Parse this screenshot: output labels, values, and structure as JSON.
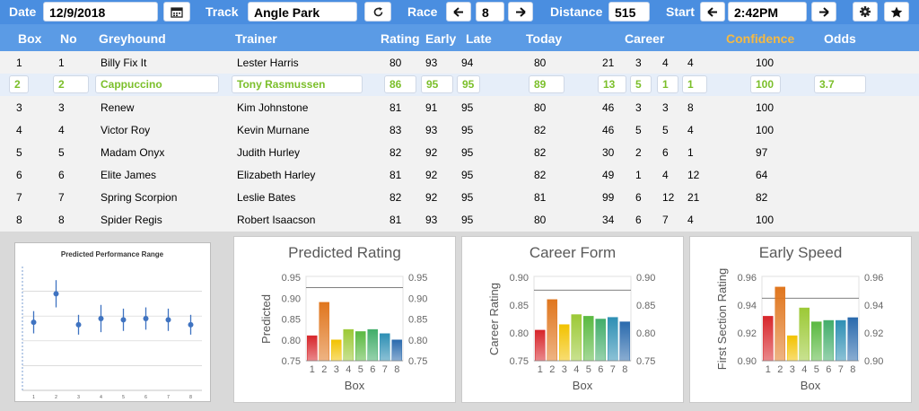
{
  "toolbar": {
    "date_label": "Date",
    "date_value": "12/9/2018",
    "calendar_icon": "calendar-icon",
    "track_label": "Track",
    "track_value": "Angle Park",
    "refresh_icon": "refresh-icon",
    "race_label": "Race",
    "race_value": "8",
    "prev_icon": "arrow-left-icon",
    "next_icon": "arrow-right-icon",
    "distance_label": "Distance",
    "distance_value": "515",
    "start_label": "Start",
    "start_value": "2:42PM",
    "settings_icon": "gear-icon",
    "favorite_icon": "star-icon"
  },
  "columns": {
    "box": "Box",
    "no": "No",
    "greyhound": "Greyhound",
    "trainer": "Trainer",
    "rating": "Rating",
    "early": "Early",
    "late": "Late",
    "today": "Today",
    "career": "Career",
    "confidence": "Confidence",
    "odds": "Odds"
  },
  "colors": {
    "header": "#5b9be5",
    "toolbar": "#4a8ee0",
    "confidence": "#f5b942",
    "selected_text": "#7bbf2a"
  },
  "rows": [
    {
      "box": "1",
      "no": "1",
      "greyhound": "Billy Fix It",
      "trainer": "Lester Harris",
      "rating": "80",
      "early": "93",
      "late": "94",
      "today": "80",
      "c1": "21",
      "c2": "3",
      "c3": "4",
      "c4": "4",
      "confidence": "100",
      "odds": ""
    },
    {
      "box": "2",
      "no": "2",
      "greyhound": "Cappuccino",
      "trainer": "Tony Rasmussen",
      "rating": "86",
      "early": "95",
      "late": "95",
      "today": "89",
      "c1": "13",
      "c2": "5",
      "c3": "1",
      "c4": "1",
      "confidence": "100",
      "odds": "3.7"
    },
    {
      "box": "3",
      "no": "3",
      "greyhound": "Renew",
      "trainer": "Kim Johnstone",
      "rating": "81",
      "early": "91",
      "late": "95",
      "today": "80",
      "c1": "46",
      "c2": "3",
      "c3": "3",
      "c4": "8",
      "confidence": "100",
      "odds": ""
    },
    {
      "box": "4",
      "no": "4",
      "greyhound": "Victor Roy",
      "trainer": "Kevin Murnane",
      "rating": "83",
      "early": "93",
      "late": "95",
      "today": "82",
      "c1": "46",
      "c2": "5",
      "c3": "5",
      "c4": "4",
      "confidence": "100",
      "odds": ""
    },
    {
      "box": "5",
      "no": "5",
      "greyhound": "Madam Onyx",
      "trainer": "Judith Hurley",
      "rating": "82",
      "early": "92",
      "late": "95",
      "today": "82",
      "c1": "30",
      "c2": "2",
      "c3": "6",
      "c4": "1",
      "confidence": "97",
      "odds": ""
    },
    {
      "box": "6",
      "no": "6",
      "greyhound": "Elite James",
      "trainer": "Elizabeth Harley",
      "rating": "81",
      "early": "92",
      "late": "95",
      "today": "82",
      "c1": "49",
      "c2": "1",
      "c3": "4",
      "c4": "12",
      "confidence": "64",
      "odds": ""
    },
    {
      "box": "7",
      "no": "7",
      "greyhound": "Spring Scorpion",
      "trainer": "Leslie Bates",
      "rating": "82",
      "early": "92",
      "late": "95",
      "today": "81",
      "c1": "99",
      "c2": "6",
      "c3": "12",
      "c4": "21",
      "confidence": "82",
      "odds": ""
    },
    {
      "box": "8",
      "no": "8",
      "greyhound": "Spider Regis",
      "trainer": "Robert Isaacson",
      "rating": "81",
      "early": "93",
      "late": "95",
      "today": "80",
      "c1": "34",
      "c2": "6",
      "c3": "7",
      "c4": "4",
      "confidence": "100",
      "odds": ""
    }
  ],
  "chart_data": [
    {
      "type": "scatter",
      "title": "Predicted Performance Range",
      "x": [
        "1",
        "2",
        "3",
        "4",
        "5",
        "6",
        "7",
        "8"
      ],
      "y": [
        0.55,
        0.78,
        0.53,
        0.58,
        0.57,
        0.58,
        0.57,
        0.53
      ],
      "error": [
        0.09,
        0.11,
        0.08,
        0.11,
        0.09,
        0.09,
        0.09,
        0.08
      ],
      "ylim": [
        0,
        1
      ]
    },
    {
      "type": "bar",
      "title": "Predicted Rating",
      "categories": [
        "1",
        "2",
        "3",
        "4",
        "5",
        "6",
        "7",
        "8"
      ],
      "values": [
        0.81,
        0.89,
        0.8,
        0.825,
        0.82,
        0.825,
        0.815,
        0.8
      ],
      "ylim": [
        0.75,
        0.95
      ],
      "yticks": [
        "0.75",
        "0.80",
        "0.85",
        "0.90",
        "0.95"
      ],
      "xlabel": "Box",
      "ylabel": "Predicted",
      "reference_line": 0.925
    },
    {
      "type": "bar",
      "title": "Career Form",
      "categories": [
        "1",
        "2",
        "3",
        "4",
        "5",
        "6",
        "7",
        "8"
      ],
      "values": [
        0.805,
        0.86,
        0.815,
        0.833,
        0.83,
        0.825,
        0.828,
        0.82
      ],
      "ylim": [
        0.75,
        0.9
      ],
      "yticks": [
        "0.75",
        "0.80",
        "0.85",
        "0.90"
      ],
      "xlabel": "Box",
      "ylabel": "Career Rating",
      "reference_line": 0.877
    },
    {
      "type": "bar",
      "title": "Early Speed",
      "categories": [
        "1",
        "2",
        "3",
        "4",
        "5",
        "6",
        "7",
        "8"
      ],
      "values": [
        0.932,
        0.953,
        0.918,
        0.938,
        0.928,
        0.929,
        0.929,
        0.931
      ],
      "ylim": [
        0.9,
        0.96
      ],
      "yticks": [
        "0.90",
        "0.92",
        "0.94",
        "0.96"
      ],
      "xlabel": "Box",
      "ylabel": "First Section Rating",
      "reference_line": 0.945
    }
  ]
}
